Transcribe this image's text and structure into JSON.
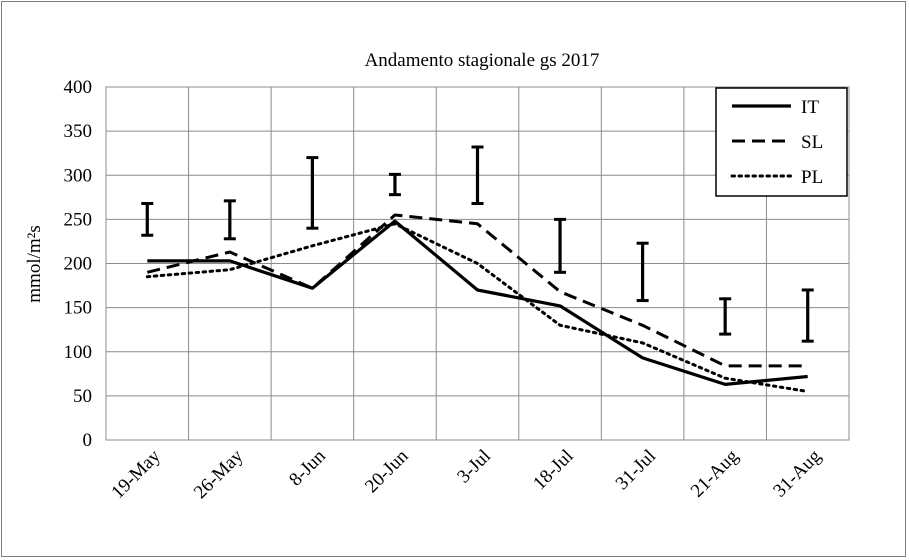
{
  "chart_data": {
    "type": "line",
    "title": "Andamento stagionale gs 2017",
    "ylabel": "mmol/m²s",
    "xlabel": "",
    "categories": [
      "19-May",
      "26-May",
      "8-Jun",
      "20-Jun",
      "3-Jul",
      "18-Jul",
      "31-Jul",
      "21-Aug",
      "31-Aug"
    ],
    "ylim": [
      0,
      400
    ],
    "yticks": [
      0,
      50,
      100,
      150,
      200,
      250,
      300,
      350,
      400
    ],
    "grid": true,
    "legend_position": "top-right",
    "series": [
      {
        "name": "IT",
        "style": "solid",
        "values": [
          203,
          203,
          172,
          248,
          170,
          152,
          93,
          63,
          72
        ]
      },
      {
        "name": "SL",
        "style": "dashed",
        "values": [
          190,
          213,
          172,
          255,
          245,
          168,
          130,
          84,
          84
        ]
      },
      {
        "name": "PL",
        "style": "dotted",
        "values": [
          185,
          193,
          220,
          245,
          200,
          130,
          110,
          70,
          55
        ]
      }
    ],
    "error_bars": [
      {
        "low": 232,
        "high": 268
      },
      {
        "low": 228,
        "high": 271
      },
      {
        "low": 240,
        "high": 320
      },
      {
        "low": 278,
        "high": 301
      },
      {
        "low": 268,
        "high": 332
      },
      {
        "low": 190,
        "high": 250
      },
      {
        "low": 158,
        "high": 223
      },
      {
        "low": 120,
        "high": 160
      },
      {
        "low": 112,
        "high": 170
      }
    ]
  }
}
